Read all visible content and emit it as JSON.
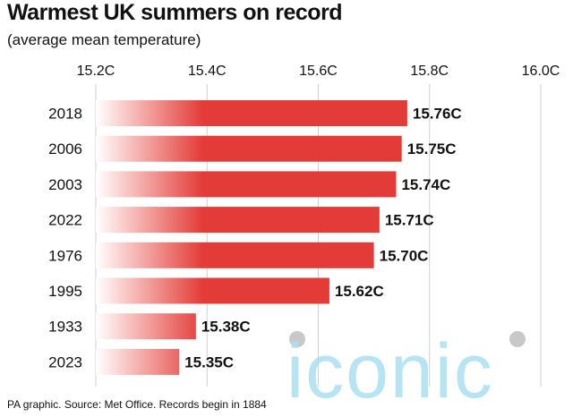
{
  "title": "Warmest UK summers on record",
  "subtitle": "(average mean temperature)",
  "source": "PA graphic. Source: Met Office. Records begin in 1884",
  "watermark_text": "iconic",
  "colors": {
    "bar": "#e33b37",
    "bar_fade": "#ffffff",
    "gridline": "#cfcfcf",
    "text": "#111111",
    "watermark": "#a9dff1",
    "watermark_dot": "#c8c8c8"
  },
  "chart_data": {
    "type": "bar",
    "orientation": "horizontal",
    "title": "Warmest UK summers on record",
    "subtitle": "(average mean temperature)",
    "xlabel": "",
    "ylabel": "",
    "xlim": [
      15.2,
      16.0
    ],
    "x_ticks": [
      "15.2C",
      "15.4C",
      "15.6C",
      "15.8C",
      "16.0C"
    ],
    "x_tick_values": [
      15.2,
      15.4,
      15.6,
      15.8,
      16.0
    ],
    "grid": true,
    "categories": [
      "2018",
      "2006",
      "2003",
      "2022",
      "1976",
      "1995",
      "1933",
      "2023"
    ],
    "values": [
      15.76,
      15.75,
      15.74,
      15.71,
      15.7,
      15.62,
      15.38,
      15.35
    ],
    "value_labels": [
      "15.76C",
      "15.75C",
      "15.74C",
      "15.71C",
      "15.70C",
      "15.62C",
      "15.38C",
      "15.35C"
    ]
  }
}
